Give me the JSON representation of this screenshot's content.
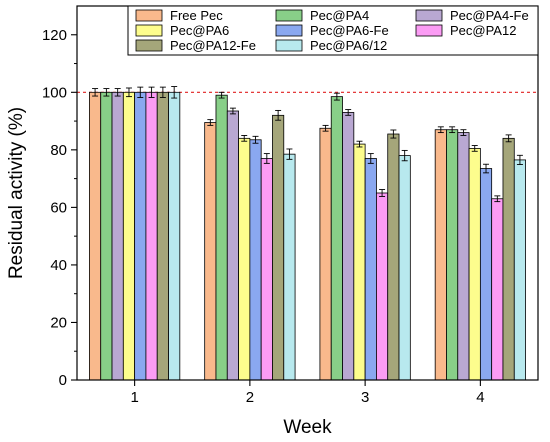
{
  "chart_data": {
    "type": "bar",
    "xlabel": "Week",
    "ylabel": "Residual activity (%)",
    "categories": [
      "1",
      "2",
      "3",
      "4"
    ],
    "ylim": [
      0,
      130
    ],
    "yticks": [
      0,
      20,
      40,
      60,
      80,
      100,
      120
    ],
    "reference_line": {
      "y": 100,
      "color": "#e02020",
      "style": "dashed"
    },
    "grid": false,
    "legend_position": "top",
    "series": [
      {
        "name": "Free Pec",
        "color": "#f9b98c",
        "values": [
          100,
          89.5,
          87.5,
          87.0
        ],
        "errors": [
          1.3,
          1.0,
          1.0,
          1.0
        ]
      },
      {
        "name": "Pec@PA4",
        "color": "#88cf88",
        "values": [
          100,
          99.0,
          98.5,
          87.0
        ],
        "errors": [
          1.3,
          1.0,
          1.2,
          1.0
        ]
      },
      {
        "name": "Pec@PA4-Fe",
        "color": "#b9a8d2",
        "values": [
          100,
          93.5,
          93.0,
          86.0
        ],
        "errors": [
          1.3,
          1.0,
          1.0,
          1.0
        ]
      },
      {
        "name": "Pec@PA6",
        "color": "#fdfd8d",
        "values": [
          100,
          84.0,
          82.0,
          80.5
        ],
        "errors": [
          1.5,
          1.0,
          1.0,
          1.0
        ]
      },
      {
        "name": "Pec@PA6-Fe",
        "color": "#8aa8f0",
        "values": [
          100,
          83.5,
          77.0,
          73.5
        ],
        "errors": [
          1.8,
          1.2,
          1.7,
          1.5
        ]
      },
      {
        "name": "Pec@PA12",
        "color": "#fb9cf4",
        "values": [
          100,
          77.0,
          65.0,
          63.0
        ],
        "errors": [
          1.8,
          1.7,
          1.2,
          1.0
        ]
      },
      {
        "name": "Pec@PA12-Fe",
        "color": "#a5a67a",
        "values": [
          100,
          92.0,
          85.5,
          84.0
        ],
        "errors": [
          1.8,
          1.7,
          1.4,
          1.2
        ]
      },
      {
        "name": "Pec@PA6/12",
        "color": "#b8e9ee",
        "values": [
          100,
          78.5,
          78.0,
          76.5
        ],
        "errors": [
          2.0,
          1.8,
          1.8,
          1.6
        ]
      }
    ]
  }
}
